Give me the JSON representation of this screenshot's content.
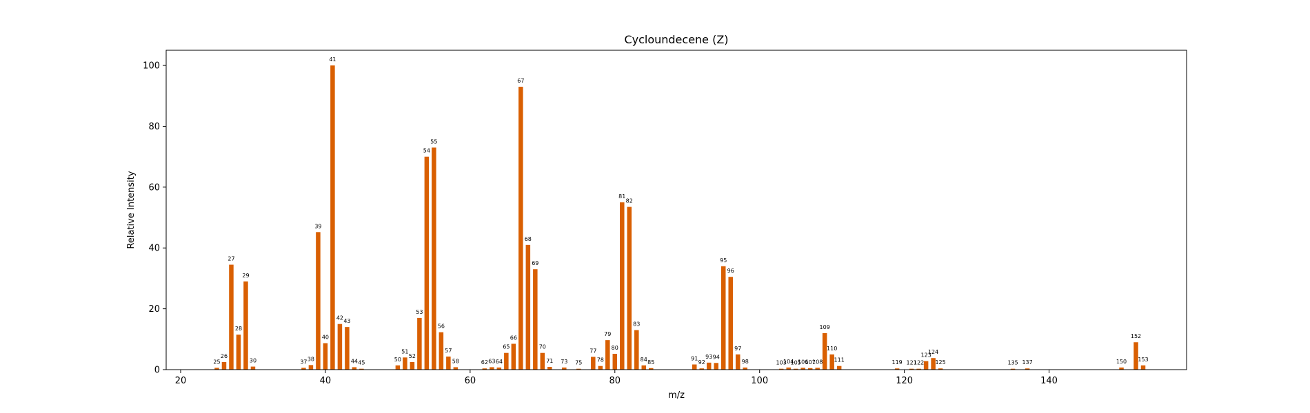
{
  "chart_data": {
    "type": "bar",
    "title": "Cycloundecene (Z)",
    "xlabel": "m/z",
    "ylabel": "Relative Intensity",
    "xlim": [
      18,
      159
    ],
    "ylim": [
      0,
      105
    ],
    "xticks": [
      20,
      40,
      60,
      80,
      100,
      120,
      140
    ],
    "yticks": [
      0,
      20,
      40,
      60,
      80,
      100
    ],
    "grid": false,
    "bar_color": "#d95f02",
    "points": [
      {
        "mz": 25,
        "intensity": 0.6
      },
      {
        "mz": 26,
        "intensity": 2.5
      },
      {
        "mz": 27,
        "intensity": 34.5
      },
      {
        "mz": 28,
        "intensity": 11.5
      },
      {
        "mz": 29,
        "intensity": 29.0
      },
      {
        "mz": 30,
        "intensity": 1.0
      },
      {
        "mz": 37,
        "intensity": 0.6
      },
      {
        "mz": 38,
        "intensity": 1.5
      },
      {
        "mz": 39,
        "intensity": 45.2
      },
      {
        "mz": 40,
        "intensity": 8.7
      },
      {
        "mz": 41,
        "intensity": 100.0
      },
      {
        "mz": 42,
        "intensity": 15.0
      },
      {
        "mz": 43,
        "intensity": 14.0
      },
      {
        "mz": 44,
        "intensity": 0.8
      },
      {
        "mz": 45,
        "intensity": 0.3
      },
      {
        "mz": 50,
        "intensity": 1.4
      },
      {
        "mz": 51,
        "intensity": 4.0
      },
      {
        "mz": 52,
        "intensity": 2.5
      },
      {
        "mz": 53,
        "intensity": 17.0
      },
      {
        "mz": 54,
        "intensity": 70.0
      },
      {
        "mz": 55,
        "intensity": 73.0
      },
      {
        "mz": 56,
        "intensity": 12.3
      },
      {
        "mz": 57,
        "intensity": 4.3
      },
      {
        "mz": 58,
        "intensity": 0.8
      },
      {
        "mz": 62,
        "intensity": 0.4
      },
      {
        "mz": 63,
        "intensity": 0.8
      },
      {
        "mz": 64,
        "intensity": 0.7
      },
      {
        "mz": 65,
        "intensity": 5.5
      },
      {
        "mz": 66,
        "intensity": 8.5
      },
      {
        "mz": 67,
        "intensity": 93.0
      },
      {
        "mz": 68,
        "intensity": 41.0
      },
      {
        "mz": 69,
        "intensity": 33.0
      },
      {
        "mz": 70,
        "intensity": 5.5
      },
      {
        "mz": 71,
        "intensity": 0.9
      },
      {
        "mz": 73,
        "intensity": 0.7
      },
      {
        "mz": 75,
        "intensity": 0.3
      },
      {
        "mz": 77,
        "intensity": 4.2
      },
      {
        "mz": 78,
        "intensity": 1.2
      },
      {
        "mz": 79,
        "intensity": 9.7
      },
      {
        "mz": 80,
        "intensity": 5.2
      },
      {
        "mz": 81,
        "intensity": 55.0
      },
      {
        "mz": 82,
        "intensity": 53.5
      },
      {
        "mz": 83,
        "intensity": 13.0
      },
      {
        "mz": 84,
        "intensity": 1.4
      },
      {
        "mz": 85,
        "intensity": 0.5
      },
      {
        "mz": 91,
        "intensity": 1.7
      },
      {
        "mz": 92,
        "intensity": 0.4
      },
      {
        "mz": 93,
        "intensity": 2.3
      },
      {
        "mz": 94,
        "intensity": 2.2
      },
      {
        "mz": 95,
        "intensity": 34.0
      },
      {
        "mz": 96,
        "intensity": 30.5
      },
      {
        "mz": 97,
        "intensity": 5.0
      },
      {
        "mz": 98,
        "intensity": 0.7
      },
      {
        "mz": 103,
        "intensity": 0.3
      },
      {
        "mz": 104,
        "intensity": 0.7
      },
      {
        "mz": 105,
        "intensity": 0.3
      },
      {
        "mz": 106,
        "intensity": 0.6
      },
      {
        "mz": 107,
        "intensity": 0.5
      },
      {
        "mz": 108,
        "intensity": 0.6
      },
      {
        "mz": 109,
        "intensity": 12.0
      },
      {
        "mz": 110,
        "intensity": 5.0
      },
      {
        "mz": 111,
        "intensity": 1.2
      },
      {
        "mz": 119,
        "intensity": 0.4
      },
      {
        "mz": 121,
        "intensity": 0.3
      },
      {
        "mz": 122,
        "intensity": 0.3
      },
      {
        "mz": 123,
        "intensity": 2.8
      },
      {
        "mz": 124,
        "intensity": 3.8
      },
      {
        "mz": 125,
        "intensity": 0.4
      },
      {
        "mz": 135,
        "intensity": 0.3
      },
      {
        "mz": 137,
        "intensity": 0.4
      },
      {
        "mz": 150,
        "intensity": 0.7
      },
      {
        "mz": 152,
        "intensity": 9.0
      },
      {
        "mz": 153,
        "intensity": 1.4
      }
    ]
  }
}
